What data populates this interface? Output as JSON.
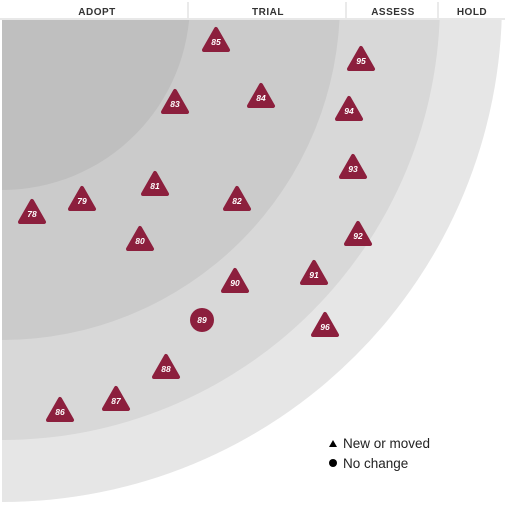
{
  "rings": [
    {
      "name": "ADOPT",
      "fill": "#bfbfbf"
    },
    {
      "name": "TRIAL",
      "fill": "#cbcbcb"
    },
    {
      "name": "ASSESS",
      "fill": "#d8d8d8"
    },
    {
      "name": "HOLD",
      "fill": "#e6e6e6"
    }
  ],
  "blip_color": "#8c1f3d",
  "blips": [
    {
      "number": "78",
      "shape": "triangle",
      "ring": "ADOPT"
    },
    {
      "number": "79",
      "shape": "triangle",
      "ring": "ADOPT"
    },
    {
      "number": "80",
      "shape": "triangle",
      "ring": "TRIAL"
    },
    {
      "number": "81",
      "shape": "triangle",
      "ring": "TRIAL"
    },
    {
      "number": "82",
      "shape": "triangle",
      "ring": "TRIAL"
    },
    {
      "number": "83",
      "shape": "triangle",
      "ring": "TRIAL"
    },
    {
      "number": "84",
      "shape": "triangle",
      "ring": "TRIAL"
    },
    {
      "number": "85",
      "shape": "triangle",
      "ring": "TRIAL"
    },
    {
      "number": "86",
      "shape": "triangle",
      "ring": "ASSESS"
    },
    {
      "number": "87",
      "shape": "triangle",
      "ring": "ASSESS"
    },
    {
      "number": "88",
      "shape": "triangle",
      "ring": "ASSESS"
    },
    {
      "number": "89",
      "shape": "circle",
      "ring": "ASSESS"
    },
    {
      "number": "90",
      "shape": "triangle",
      "ring": "ASSESS"
    },
    {
      "number": "91",
      "shape": "triangle",
      "ring": "ASSESS"
    },
    {
      "number": "92",
      "shape": "triangle",
      "ring": "ASSESS"
    },
    {
      "number": "93",
      "shape": "triangle",
      "ring": "ASSESS"
    },
    {
      "number": "94",
      "shape": "triangle",
      "ring": "ASSESS"
    },
    {
      "number": "95",
      "shape": "triangle",
      "ring": "ASSESS"
    },
    {
      "number": "96",
      "shape": "triangle",
      "ring": "ASSESS"
    }
  ],
  "legend": {
    "new_or_moved": "New or moved",
    "no_change": "No change"
  }
}
